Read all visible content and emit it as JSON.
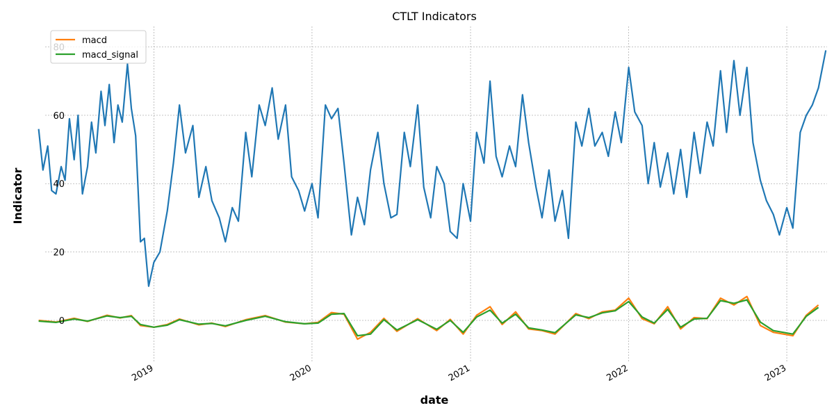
{
  "chart_data": {
    "type": "line",
    "title": "CTLT Indicators",
    "xlabel": "date",
    "ylabel": "Indicator",
    "x_range": [
      "2018-04-01",
      "2023-04-20"
    ],
    "ylim": [
      -12,
      86
    ],
    "y_ticks": [
      0,
      20,
      40,
      60,
      80
    ],
    "x_ticks": [
      {
        "date": "2019-01-01",
        "label": "2019"
      },
      {
        "date": "2020-01-01",
        "label": "2020"
      },
      {
        "date": "2021-01-01",
        "label": "2021"
      },
      {
        "date": "2022-01-01",
        "label": "2022"
      },
      {
        "date": "2023-01-01",
        "label": "2023"
      }
    ],
    "grid": true,
    "legend_position": "top-left",
    "series": [
      {
        "name": "",
        "color": "#1f77b4",
        "in_legend": false,
        "points": [
          [
            "2018-04-10",
            56
          ],
          [
            "2018-04-20",
            44
          ],
          [
            "2018-05-01",
            51
          ],
          [
            "2018-05-10",
            38
          ],
          [
            "2018-05-20",
            37
          ],
          [
            "2018-06-01",
            45
          ],
          [
            "2018-06-10",
            41
          ],
          [
            "2018-06-20",
            59
          ],
          [
            "2018-07-01",
            47
          ],
          [
            "2018-07-10",
            60
          ],
          [
            "2018-07-20",
            37
          ],
          [
            "2018-08-01",
            45
          ],
          [
            "2018-08-10",
            58
          ],
          [
            "2018-08-20",
            49
          ],
          [
            "2018-09-01",
            67
          ],
          [
            "2018-09-10",
            57
          ],
          [
            "2018-09-20",
            69
          ],
          [
            "2018-10-01",
            52
          ],
          [
            "2018-10-10",
            63
          ],
          [
            "2018-10-20",
            58
          ],
          [
            "2018-11-01",
            75
          ],
          [
            "2018-11-10",
            62
          ],
          [
            "2018-11-20",
            54
          ],
          [
            "2018-12-01",
            23
          ],
          [
            "2018-12-10",
            24
          ],
          [
            "2018-12-20",
            10
          ],
          [
            "2019-01-01",
            17
          ],
          [
            "2019-01-15",
            20
          ],
          [
            "2019-02-01",
            32
          ],
          [
            "2019-02-15",
            46
          ],
          [
            "2019-03-01",
            63
          ],
          [
            "2019-03-15",
            49
          ],
          [
            "2019-04-01",
            57
          ],
          [
            "2019-04-15",
            36
          ],
          [
            "2019-05-01",
            45
          ],
          [
            "2019-05-15",
            35
          ],
          [
            "2019-06-01",
            30
          ],
          [
            "2019-06-15",
            23
          ],
          [
            "2019-07-01",
            33
          ],
          [
            "2019-07-15",
            29
          ],
          [
            "2019-08-01",
            55
          ],
          [
            "2019-08-15",
            42
          ],
          [
            "2019-09-01",
            63
          ],
          [
            "2019-09-15",
            57
          ],
          [
            "2019-10-01",
            68
          ],
          [
            "2019-10-15",
            53
          ],
          [
            "2019-11-01",
            63
          ],
          [
            "2019-11-15",
            42
          ],
          [
            "2019-12-01",
            38
          ],
          [
            "2019-12-15",
            32
          ],
          [
            "2020-01-01",
            40
          ],
          [
            "2020-01-15",
            30
          ],
          [
            "2020-02-01",
            63
          ],
          [
            "2020-02-15",
            59
          ],
          [
            "2020-03-01",
            62
          ],
          [
            "2020-03-15",
            46
          ],
          [
            "2020-04-01",
            25
          ],
          [
            "2020-04-15",
            36
          ],
          [
            "2020-05-01",
            28
          ],
          [
            "2020-05-15",
            44
          ],
          [
            "2020-06-01",
            55
          ],
          [
            "2020-06-15",
            40
          ],
          [
            "2020-07-01",
            30
          ],
          [
            "2020-07-15",
            31
          ],
          [
            "2020-08-01",
            55
          ],
          [
            "2020-08-15",
            45
          ],
          [
            "2020-09-01",
            63
          ],
          [
            "2020-09-15",
            39
          ],
          [
            "2020-10-01",
            30
          ],
          [
            "2020-10-15",
            45
          ],
          [
            "2020-11-01",
            40
          ],
          [
            "2020-11-15",
            26
          ],
          [
            "2020-12-01",
            24
          ],
          [
            "2020-12-15",
            40
          ],
          [
            "2021-01-01",
            29
          ],
          [
            "2021-01-15",
            55
          ],
          [
            "2021-02-01",
            46
          ],
          [
            "2021-02-15",
            70
          ],
          [
            "2021-03-01",
            48
          ],
          [
            "2021-03-15",
            42
          ],
          [
            "2021-04-01",
            51
          ],
          [
            "2021-04-15",
            45
          ],
          [
            "2021-05-01",
            66
          ],
          [
            "2021-05-15",
            52
          ],
          [
            "2021-06-01",
            39
          ],
          [
            "2021-06-15",
            30
          ],
          [
            "2021-07-01",
            44
          ],
          [
            "2021-07-15",
            29
          ],
          [
            "2021-08-01",
            38
          ],
          [
            "2021-08-15",
            24
          ],
          [
            "2021-09-01",
            58
          ],
          [
            "2021-09-15",
            51
          ],
          [
            "2021-10-01",
            62
          ],
          [
            "2021-10-15",
            51
          ],
          [
            "2021-11-01",
            55
          ],
          [
            "2021-11-15",
            48
          ],
          [
            "2021-12-01",
            61
          ],
          [
            "2021-12-15",
            52
          ],
          [
            "2022-01-01",
            74
          ],
          [
            "2022-01-15",
            61
          ],
          [
            "2022-02-01",
            57
          ],
          [
            "2022-02-15",
            40
          ],
          [
            "2022-03-01",
            52
          ],
          [
            "2022-03-15",
            39
          ],
          [
            "2022-04-01",
            49
          ],
          [
            "2022-04-15",
            37
          ],
          [
            "2022-05-01",
            50
          ],
          [
            "2022-05-15",
            36
          ],
          [
            "2022-06-01",
            55
          ],
          [
            "2022-06-15",
            43
          ],
          [
            "2022-07-01",
            58
          ],
          [
            "2022-07-15",
            51
          ],
          [
            "2022-08-01",
            73
          ],
          [
            "2022-08-15",
            55
          ],
          [
            "2022-09-01",
            76
          ],
          [
            "2022-09-15",
            60
          ],
          [
            "2022-10-01",
            74
          ],
          [
            "2022-10-15",
            52
          ],
          [
            "2022-11-01",
            41
          ],
          [
            "2022-11-15",
            35
          ],
          [
            "2022-12-01",
            31
          ],
          [
            "2022-12-15",
            25
          ],
          [
            "2023-01-01",
            33
          ],
          [
            "2023-01-15",
            27
          ],
          [
            "2023-02-01",
            55
          ],
          [
            "2023-02-15",
            60
          ],
          [
            "2023-03-01",
            63
          ],
          [
            "2023-03-15",
            68
          ],
          [
            "2023-04-01",
            79
          ]
        ]
      },
      {
        "name": "macd",
        "color": "#ff7f0e",
        "in_legend": true,
        "points": [
          [
            "2018-04-10",
            0
          ],
          [
            "2018-05-20",
            -0.5
          ],
          [
            "2018-07-01",
            0.6
          ],
          [
            "2018-08-01",
            -0.3
          ],
          [
            "2018-09-15",
            1.5
          ],
          [
            "2018-10-15",
            0.7
          ],
          [
            "2018-11-10",
            1.4
          ],
          [
            "2018-12-01",
            -1.5
          ],
          [
            "2019-01-01",
            -2.0
          ],
          [
            "2019-02-01",
            -1.2
          ],
          [
            "2019-03-01",
            0.4
          ],
          [
            "2019-04-15",
            -1.3
          ],
          [
            "2019-05-15",
            -0.8
          ],
          [
            "2019-06-15",
            -1.8
          ],
          [
            "2019-08-01",
            0.2
          ],
          [
            "2019-09-15",
            1.4
          ],
          [
            "2019-11-01",
            -0.5
          ],
          [
            "2019-12-15",
            -1.0
          ],
          [
            "2020-01-15",
            -0.6
          ],
          [
            "2020-02-15",
            2.3
          ],
          [
            "2020-03-15",
            1.8
          ],
          [
            "2020-04-15",
            -5.5
          ],
          [
            "2020-05-15",
            -3.5
          ],
          [
            "2020-06-15",
            0.6
          ],
          [
            "2020-07-15",
            -3.2
          ],
          [
            "2020-09-01",
            0.5
          ],
          [
            "2020-10-15",
            -3.0
          ],
          [
            "2020-11-15",
            0.3
          ],
          [
            "2020-12-15",
            -4.0
          ],
          [
            "2021-01-15",
            1.5
          ],
          [
            "2021-02-15",
            4.0
          ],
          [
            "2021-03-15",
            -1.2
          ],
          [
            "2021-04-15",
            2.5
          ],
          [
            "2021-05-15",
            -2.5
          ],
          [
            "2021-06-15",
            -3.0
          ],
          [
            "2021-07-15",
            -4.0
          ],
          [
            "2021-09-01",
            2.0
          ],
          [
            "2021-10-01",
            0.5
          ],
          [
            "2021-11-01",
            2.5
          ],
          [
            "2021-12-01",
            3.0
          ],
          [
            "2022-01-01",
            6.5
          ],
          [
            "2022-02-01",
            0.5
          ],
          [
            "2022-03-01",
            -1.0
          ],
          [
            "2022-04-01",
            4.0
          ],
          [
            "2022-05-01",
            -2.5
          ],
          [
            "2022-06-01",
            0.8
          ],
          [
            "2022-07-01",
            0.5
          ],
          [
            "2022-08-01",
            6.5
          ],
          [
            "2022-09-01",
            4.5
          ],
          [
            "2022-10-01",
            7.0
          ],
          [
            "2022-11-01",
            -1.5
          ],
          [
            "2022-12-01",
            -3.5
          ],
          [
            "2023-01-15",
            -4.5
          ],
          [
            "2023-02-15",
            1.5
          ],
          [
            "2023-03-15",
            4.5
          ]
        ]
      },
      {
        "name": "macd_signal",
        "color": "#2ca02c",
        "in_legend": true,
        "points": [
          [
            "2018-04-10",
            -0.2
          ],
          [
            "2018-05-20",
            -0.6
          ],
          [
            "2018-07-01",
            0.4
          ],
          [
            "2018-08-01",
            -0.2
          ],
          [
            "2018-09-15",
            1.3
          ],
          [
            "2018-10-15",
            0.8
          ],
          [
            "2018-11-10",
            1.2
          ],
          [
            "2018-12-01",
            -1.2
          ],
          [
            "2019-01-01",
            -2.0
          ],
          [
            "2019-02-01",
            -1.4
          ],
          [
            "2019-03-01",
            0.2
          ],
          [
            "2019-04-15",
            -1.1
          ],
          [
            "2019-05-15",
            -0.9
          ],
          [
            "2019-06-15",
            -1.6
          ],
          [
            "2019-08-01",
            0.0
          ],
          [
            "2019-09-15",
            1.2
          ],
          [
            "2019-11-01",
            -0.4
          ],
          [
            "2019-12-15",
            -1.0
          ],
          [
            "2020-01-15",
            -0.8
          ],
          [
            "2020-02-15",
            1.8
          ],
          [
            "2020-03-15",
            2.0
          ],
          [
            "2020-04-15",
            -4.5
          ],
          [
            "2020-05-15",
            -4.0
          ],
          [
            "2020-06-15",
            0.2
          ],
          [
            "2020-07-15",
            -2.8
          ],
          [
            "2020-09-01",
            0.2
          ],
          [
            "2020-10-15",
            -2.6
          ],
          [
            "2020-11-15",
            0.0
          ],
          [
            "2020-12-15",
            -3.5
          ],
          [
            "2021-01-15",
            1.0
          ],
          [
            "2021-02-15",
            3.0
          ],
          [
            "2021-03-15",
            -0.8
          ],
          [
            "2021-04-15",
            1.8
          ],
          [
            "2021-05-15",
            -2.2
          ],
          [
            "2021-06-15",
            -2.8
          ],
          [
            "2021-07-15",
            -3.6
          ],
          [
            "2021-09-01",
            1.6
          ],
          [
            "2021-10-01",
            0.8
          ],
          [
            "2021-11-01",
            2.2
          ],
          [
            "2021-12-01",
            2.8
          ],
          [
            "2022-01-01",
            5.5
          ],
          [
            "2022-02-01",
            1.0
          ],
          [
            "2022-03-01",
            -0.8
          ],
          [
            "2022-04-01",
            3.2
          ],
          [
            "2022-05-01",
            -2.0
          ],
          [
            "2022-06-01",
            0.4
          ],
          [
            "2022-07-01",
            0.6
          ],
          [
            "2022-08-01",
            5.8
          ],
          [
            "2022-09-01",
            5.0
          ],
          [
            "2022-10-01",
            6.0
          ],
          [
            "2022-11-01",
            -0.5
          ],
          [
            "2022-12-01",
            -3.0
          ],
          [
            "2023-01-15",
            -4.0
          ],
          [
            "2023-02-15",
            1.2
          ],
          [
            "2023-03-15",
            3.8
          ]
        ]
      }
    ]
  }
}
